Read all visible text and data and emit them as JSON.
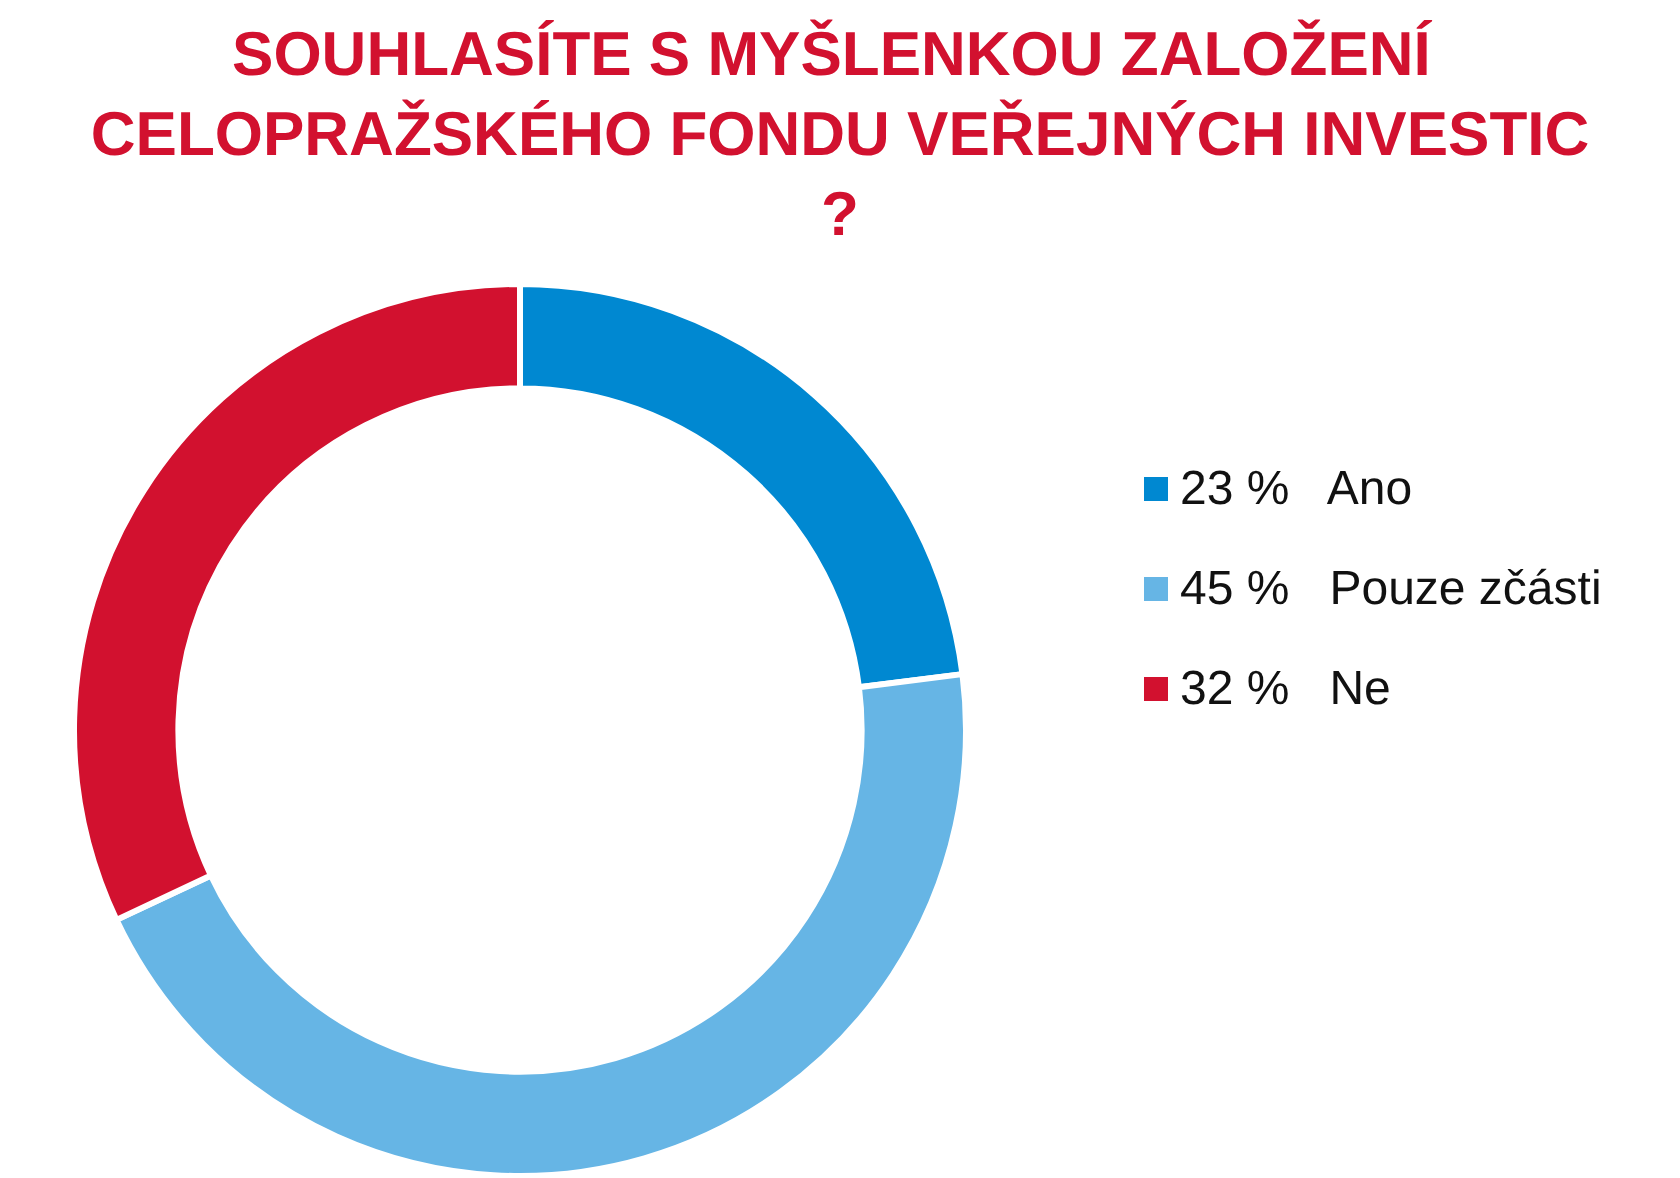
{
  "chart_data": {
    "type": "donut",
    "title": "SOUHLASÍTE S MYŠLENKOU ZALOŽENÍ CELOPRAŽSKÉHO FONDU VEŘEJNÝCH INVESTIC?",
    "categories": [
      "Ano",
      "Pouze zčásti",
      "Ne"
    ],
    "values": [
      23,
      45,
      32
    ],
    "value_labels": [
      "23 %",
      "45 %",
      "32 %"
    ],
    "colors": [
      "#0088d1",
      "#66b5e5",
      "#d2112f"
    ],
    "legend": "right"
  }
}
